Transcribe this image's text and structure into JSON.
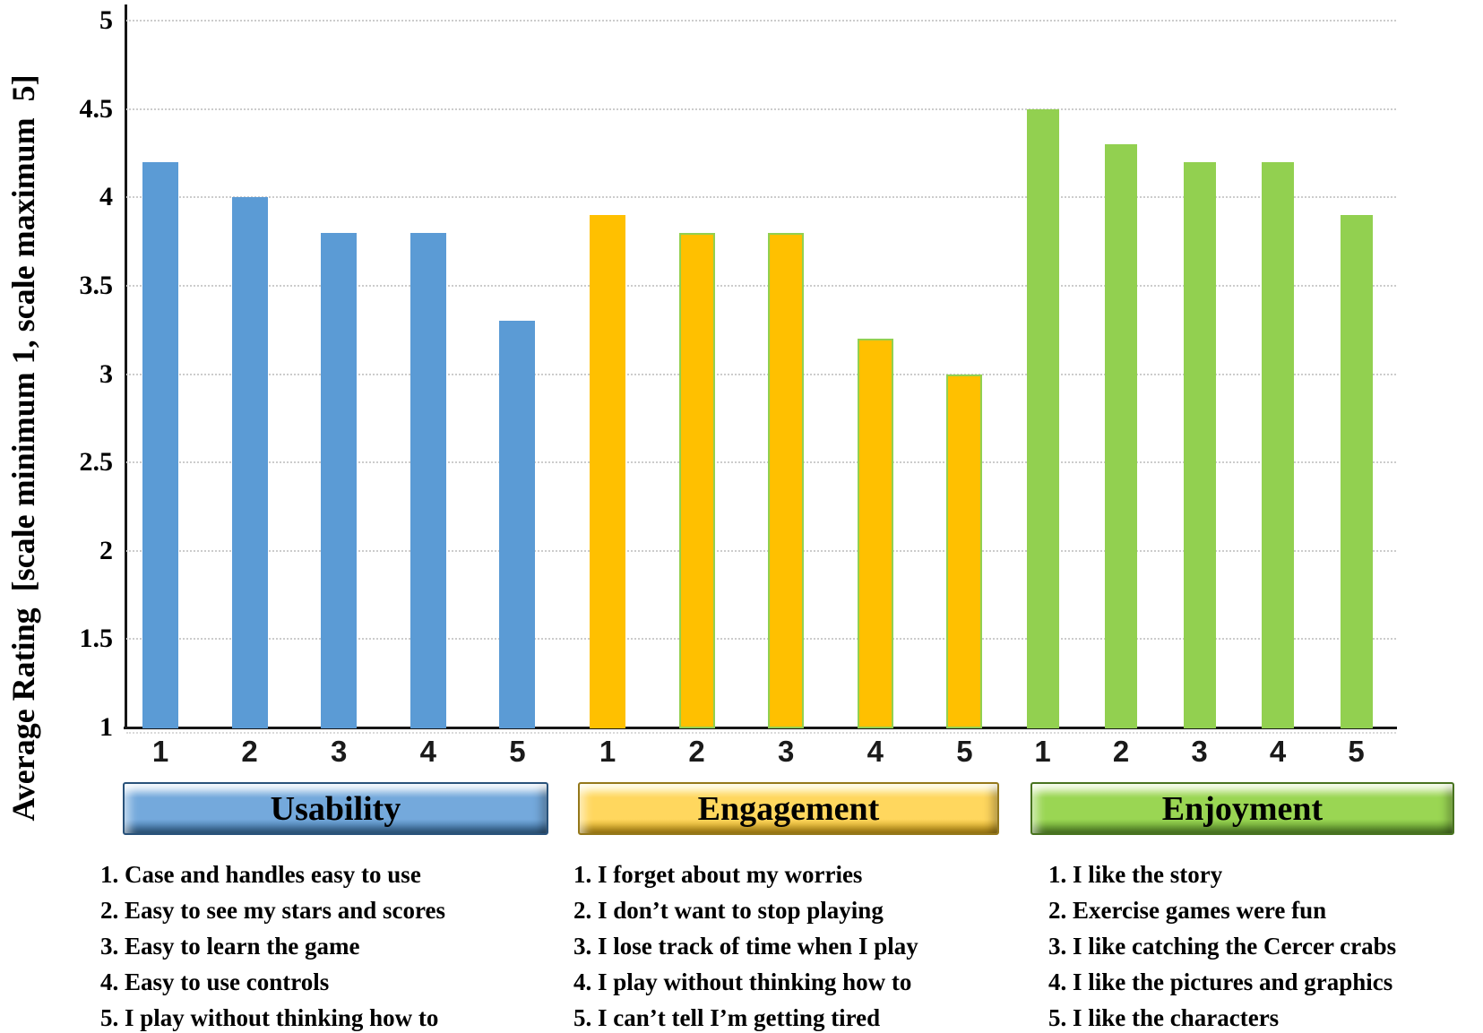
{
  "y_axis": {
    "title": "Average Rating  [scale minimum 1, scale maximum  5]",
    "ticks": [
      {
        "value": 5,
        "label": "5"
      },
      {
        "value": 4.5,
        "label": "4.5"
      },
      {
        "value": 4,
        "label": "4"
      },
      {
        "value": 3.5,
        "label": "3.5"
      },
      {
        "value": 3,
        "label": "3"
      },
      {
        "value": 2.5,
        "label": "2.5"
      },
      {
        "value": 2,
        "label": "2"
      },
      {
        "value": 1.5,
        "label": "1.5"
      },
      {
        "value": 1,
        "label": "1"
      }
    ]
  },
  "chart_data": {
    "type": "bar",
    "title": "",
    "xlabel": "",
    "ylabel": "Average Rating [scale minimum 1, scale maximum 5]",
    "ylim": [
      1,
      5
    ],
    "grid": "horizontal dotted every 0.5",
    "legend_position": "below as group buttons and numbered item lists",
    "categories": [
      "1",
      "2",
      "3",
      "4",
      "5"
    ],
    "gridline_values": [
      5,
      4.5,
      4,
      3.5,
      3,
      2.5,
      2,
      1.5
    ],
    "series": [
      {
        "name": "Usability",
        "color": "#5B9BD5",
        "values": [
          4.2,
          4.0,
          3.8,
          3.8,
          3.3
        ]
      },
      {
        "name": "Engagement",
        "color": "#FFC000",
        "outline": "#92D050",
        "values": [
          3.9,
          3.8,
          3.8,
          3.2,
          3.0
        ]
      },
      {
        "name": "Enjoyment",
        "color": "#92D050",
        "values": [
          4.5,
          4.3,
          4.2,
          4.2,
          3.9
        ]
      }
    ]
  },
  "groups": [
    {
      "label": "Usability",
      "bar_color": "#5B9BD5",
      "button_light": "#CFE2F3",
      "button_face": "#74A9DC",
      "button_dark": "#3C74A8",
      "button_border": "#29527A",
      "items": [
        "1. Case and handles easy to use",
        "2. Easy to see my stars and scores",
        "3. Easy to learn the game",
        "4. Easy to use controls",
        "5. I play without thinking how to"
      ]
    },
    {
      "label": "Engagement",
      "bar_color": "#FFC000",
      "bar_outline": "#92D050",
      "button_light": "#FFF2B0",
      "button_face": "#FFD75E",
      "button_dark": "#D9A615",
      "button_border": "#94781B",
      "items": [
        "1. I forget about my worries",
        "2. I don’t want to stop playing",
        "3. I lose track of time when I play",
        "4. I play without thinking how to",
        "5. I can’t tell I’m getting tired"
      ]
    },
    {
      "label": "Enjoyment",
      "bar_color": "#92D050",
      "button_light": "#D9F0B2",
      "button_face": "#9AD653",
      "button_dark": "#639F2D",
      "button_border": "#48731F",
      "items": [
        "1. I like the story",
        "2. Exercise games were fun",
        "3. I like catching the Cercer crabs",
        "4. I like the pictures and graphics",
        "5. I like the characters"
      ]
    }
  ]
}
